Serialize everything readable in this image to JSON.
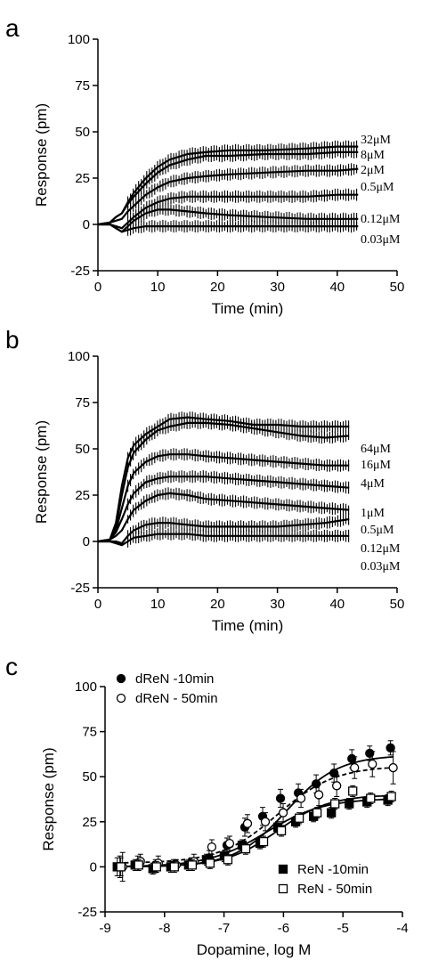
{
  "panels": {
    "a": {
      "label": "a"
    },
    "b": {
      "label": "b"
    },
    "c": {
      "label": "c"
    }
  },
  "chart_data": [
    {
      "type": "line",
      "xlabel": "Time (min)",
      "ylabel": "Response (pm)",
      "xlim": [
        0,
        50
      ],
      "ylim": [
        -25,
        100
      ],
      "xticks": [
        "0",
        "10",
        "20",
        "30",
        "40",
        "50"
      ],
      "yticks": [
        "-25",
        "0",
        "25",
        "50",
        "75",
        "100"
      ],
      "series": [
        {
          "name": "32μM",
          "values": [
            [
              0,
              0
            ],
            [
              2,
              1
            ],
            [
              3,
              4
            ],
            [
              4,
              6
            ],
            [
              5,
              12
            ],
            [
              6,
              17
            ],
            [
              8,
              25
            ],
            [
              10,
              31
            ],
            [
              12,
              35
            ],
            [
              15,
              38
            ],
            [
              18,
              39
            ],
            [
              22,
              40
            ],
            [
              28,
              40
            ],
            [
              35,
              41
            ],
            [
              40,
              42
            ],
            [
              43.5,
              42
            ]
          ]
        },
        {
          "name": "8μM",
          "values": [
            [
              0,
              0
            ],
            [
              2,
              1
            ],
            [
              3,
              4
            ],
            [
              4,
              6
            ],
            [
              5,
              11
            ],
            [
              6,
              15
            ],
            [
              8,
              22
            ],
            [
              10,
              28
            ],
            [
              12,
              32
            ],
            [
              15,
              35
            ],
            [
              18,
              37
            ],
            [
              22,
              37
            ],
            [
              28,
              38
            ],
            [
              35,
              38
            ],
            [
              40,
              39
            ],
            [
              43.5,
              39
            ]
          ]
        },
        {
          "name": "2μM",
          "values": [
            [
              0,
              0
            ],
            [
              2,
              1
            ],
            [
              3,
              2
            ],
            [
              4,
              3
            ],
            [
              5,
              7
            ],
            [
              6,
              10
            ],
            [
              8,
              16
            ],
            [
              10,
              20
            ],
            [
              12,
              23
            ],
            [
              15,
              25
            ],
            [
              18,
              26
            ],
            [
              22,
              27
            ],
            [
              28,
              28
            ],
            [
              35,
              29
            ],
            [
              40,
              29
            ],
            [
              43.5,
              30
            ]
          ]
        },
        {
          "name": "0.5μM",
          "values": [
            [
              0,
              0
            ],
            [
              2,
              0
            ],
            [
              3,
              -1
            ],
            [
              4,
              -2
            ],
            [
              5,
              1
            ],
            [
              6,
              4
            ],
            [
              8,
              9
            ],
            [
              10,
              12
            ],
            [
              12,
              14
            ],
            [
              15,
              15
            ],
            [
              18,
              15
            ],
            [
              22,
              15
            ],
            [
              28,
              15
            ],
            [
              35,
              15
            ],
            [
              40,
              16
            ],
            [
              43.5,
              16
            ]
          ]
        },
        {
          "name": "0.12μM",
          "values": [
            [
              0,
              0
            ],
            [
              2,
              0
            ],
            [
              3,
              -2
            ],
            [
              4,
              -4
            ],
            [
              5,
              -1
            ],
            [
              6,
              2
            ],
            [
              8,
              6
            ],
            [
              10,
              8
            ],
            [
              12,
              8
            ],
            [
              15,
              7
            ],
            [
              18,
              6
            ],
            [
              22,
              5
            ],
            [
              28,
              4
            ],
            [
              35,
              3
            ],
            [
              40,
              3
            ],
            [
              43.5,
              3
            ]
          ]
        },
        {
          "name": "0.03μM",
          "values": [
            [
              0,
              0
            ],
            [
              2,
              0
            ],
            [
              3,
              -2
            ],
            [
              4,
              -4
            ],
            [
              5,
              -3
            ],
            [
              6,
              -2
            ],
            [
              8,
              -1
            ],
            [
              10,
              -1
            ],
            [
              12,
              -1
            ],
            [
              15,
              -1
            ],
            [
              18,
              -1
            ],
            [
              22,
              -1
            ],
            [
              28,
              -1
            ],
            [
              35,
              -1
            ],
            [
              40,
              -1
            ],
            [
              43.5,
              -1
            ]
          ]
        }
      ]
    },
    {
      "type": "line",
      "xlabel": "Time (min)",
      "ylabel": "Response (pm)",
      "xlim": [
        0,
        50
      ],
      "ylim": [
        -25,
        100
      ],
      "xticks": [
        "0",
        "10",
        "20",
        "30",
        "40",
        "50"
      ],
      "yticks": [
        "-25",
        "0",
        "25",
        "50",
        "75",
        "100"
      ],
      "series": [
        {
          "name": "64μM",
          "values": [
            [
              0,
              0
            ],
            [
              2,
              1
            ],
            [
              3,
              10
            ],
            [
              4,
              30
            ],
            [
              5,
              45
            ],
            [
              6,
              52
            ],
            [
              8,
              58
            ],
            [
              10,
              62
            ],
            [
              12,
              66
            ],
            [
              15,
              67
            ],
            [
              18,
              66
            ],
            [
              22,
              65
            ],
            [
              26,
              63
            ],
            [
              30,
              63
            ],
            [
              34,
              62
            ],
            [
              38,
              62
            ],
            [
              42,
              62
            ]
          ]
        },
        {
          "name": "16μM",
          "values": [
            [
              0,
              0
            ],
            [
              2,
              1
            ],
            [
              3,
              8
            ],
            [
              4,
              25
            ],
            [
              5,
              40
            ],
            [
              6,
              48
            ],
            [
              8,
              55
            ],
            [
              10,
              60
            ],
            [
              12,
              62
            ],
            [
              15,
              64
            ],
            [
              18,
              64
            ],
            [
              22,
              63
            ],
            [
              26,
              61
            ],
            [
              30,
              59
            ],
            [
              34,
              57
            ],
            [
              38,
              56
            ],
            [
              42,
              57
            ]
          ]
        },
        {
          "name": "4μM",
          "values": [
            [
              0,
              0
            ],
            [
              2,
              1
            ],
            [
              3,
              6
            ],
            [
              4,
              18
            ],
            [
              5,
              30
            ],
            [
              6,
              37
            ],
            [
              8,
              43
            ],
            [
              10,
              46
            ],
            [
              12,
              47
            ],
            [
              15,
              47
            ],
            [
              18,
              46
            ],
            [
              22,
              45
            ],
            [
              26,
              44
            ],
            [
              30,
              43
            ],
            [
              34,
              42
            ],
            [
              38,
              41
            ],
            [
              42,
              41
            ]
          ]
        },
        {
          "name": "1μM",
          "values": [
            [
              0,
              0
            ],
            [
              2,
              1
            ],
            [
              3,
              5
            ],
            [
              4,
              12
            ],
            [
              5,
              20
            ],
            [
              6,
              26
            ],
            [
              8,
              32
            ],
            [
              10,
              34
            ],
            [
              12,
              35
            ],
            [
              15,
              35
            ],
            [
              18,
              35
            ],
            [
              22,
              34
            ],
            [
              26,
              33
            ],
            [
              30,
              32
            ],
            [
              34,
              31
            ],
            [
              38,
              30
            ],
            [
              42,
              29
            ]
          ]
        },
        {
          "name": "0.5μM",
          "values": [
            [
              0,
              0
            ],
            [
              2,
              1
            ],
            [
              3,
              3
            ],
            [
              4,
              6
            ],
            [
              5,
              12
            ],
            [
              6,
              17
            ],
            [
              8,
              22
            ],
            [
              10,
              25
            ],
            [
              12,
              26
            ],
            [
              15,
              25
            ],
            [
              18,
              23
            ],
            [
              22,
              22
            ],
            [
              26,
              21
            ],
            [
              30,
              20
            ],
            [
              34,
              19
            ],
            [
              38,
              18
            ],
            [
              42,
              17
            ]
          ]
        },
        {
          "name": "0.12μM",
          "values": [
            [
              0,
              0
            ],
            [
              2,
              0
            ],
            [
              3,
              0
            ],
            [
              4,
              -1
            ],
            [
              5,
              3
            ],
            [
              6,
              6
            ],
            [
              8,
              9
            ],
            [
              10,
              10
            ],
            [
              12,
              10
            ],
            [
              15,
              9
            ],
            [
              18,
              8
            ],
            [
              22,
              8
            ],
            [
              26,
              8
            ],
            [
              30,
              8
            ],
            [
              34,
              9
            ],
            [
              38,
              10
            ],
            [
              42,
              12
            ]
          ]
        },
        {
          "name": "0.03μM",
          "values": [
            [
              0,
              0
            ],
            [
              2,
              0
            ],
            [
              3,
              -1
            ],
            [
              4,
              -2
            ],
            [
              5,
              0
            ],
            [
              6,
              2
            ],
            [
              8,
              3
            ],
            [
              10,
              4
            ],
            [
              12,
              4
            ],
            [
              15,
              4
            ],
            [
              18,
              3
            ],
            [
              22,
              3
            ],
            [
              26,
              3
            ],
            [
              30,
              3
            ],
            [
              34,
              3
            ],
            [
              38,
              3
            ],
            [
              42,
              3
            ]
          ]
        }
      ]
    },
    {
      "type": "scatter",
      "xlabel": "Dopamine, log M",
      "ylabel": "Response (pm)",
      "xlim": [
        -9,
        -4
      ],
      "ylim": [
        -25,
        100
      ],
      "xticks": [
        "-9",
        "-8",
        "-7",
        "-6",
        "-5",
        "-4"
      ],
      "yticks": [
        "-25",
        "0",
        "25",
        "50",
        "75",
        "100"
      ],
      "x": [
        -8.75,
        -8.45,
        -8.15,
        -7.85,
        -7.55,
        -7.25,
        -6.95,
        -6.65,
        -6.35,
        -6.05,
        -5.75,
        -5.45,
        -5.15,
        -4.85,
        -4.55,
        -4.2
      ],
      "series": [
        {
          "name": "dReN -10min",
          "marker": "filled-circle",
          "values": [
            0,
            2,
            1,
            1,
            2,
            5,
            12,
            22,
            28,
            38,
            41,
            46,
            52,
            60,
            63,
            66
          ],
          "errors": [
            6,
            4,
            3,
            3,
            3,
            4,
            4,
            5,
            5,
            5,
            5,
            5,
            5,
            5,
            4,
            4
          ]
        },
        {
          "name": "dReN - 50min",
          "marker": "open-circle",
          "values": [
            0,
            3,
            2,
            1,
            3,
            11,
            13,
            24,
            25,
            30,
            38,
            40,
            45,
            55,
            57,
            55
          ],
          "errors": [
            8,
            4,
            4,
            3,
            4,
            4,
            4,
            5,
            5,
            5,
            5,
            6,
            6,
            6,
            7,
            9
          ]
        },
        {
          "name": "ReN -10min",
          "marker": "filled-square",
          "values": [
            0,
            1,
            -1,
            0,
            1,
            4,
            6,
            12,
            13,
            22,
            25,
            28,
            30,
            35,
            36,
            37
          ],
          "errors": [
            5,
            3,
            3,
            3,
            3,
            3,
            3,
            3,
            3,
            3,
            3,
            3,
            3,
            3,
            3,
            3
          ]
        },
        {
          "name": "ReN - 50min",
          "marker": "open-square",
          "values": [
            0,
            1,
            0,
            0,
            1,
            2,
            4,
            10,
            14,
            20,
            27,
            30,
            35,
            42,
            38,
            39
          ],
          "errors": [
            5,
            3,
            3,
            3,
            3,
            3,
            3,
            3,
            3,
            3,
            3,
            3,
            3,
            3,
            3,
            3
          ]
        }
      ],
      "fits": [
        {
          "series": "dReN -10min",
          "style": "solid",
          "bottom": 0,
          "top": 62,
          "logEC50": -5.95,
          "hill": 1.0
        },
        {
          "series": "dReN - 50min",
          "style": "dashed",
          "bottom": 2,
          "top": 56,
          "logEC50": -6.1,
          "hill": 0.9
        },
        {
          "series": "ReN -10min",
          "style": "solid",
          "bottom": 0,
          "top": 40,
          "logEC50": -6.1,
          "hill": 1.0
        },
        {
          "series": "ReN - 50min",
          "style": "solid",
          "bottom": 0,
          "top": 38,
          "logEC50": -6.3,
          "hill": 0.9
        }
      ]
    }
  ]
}
